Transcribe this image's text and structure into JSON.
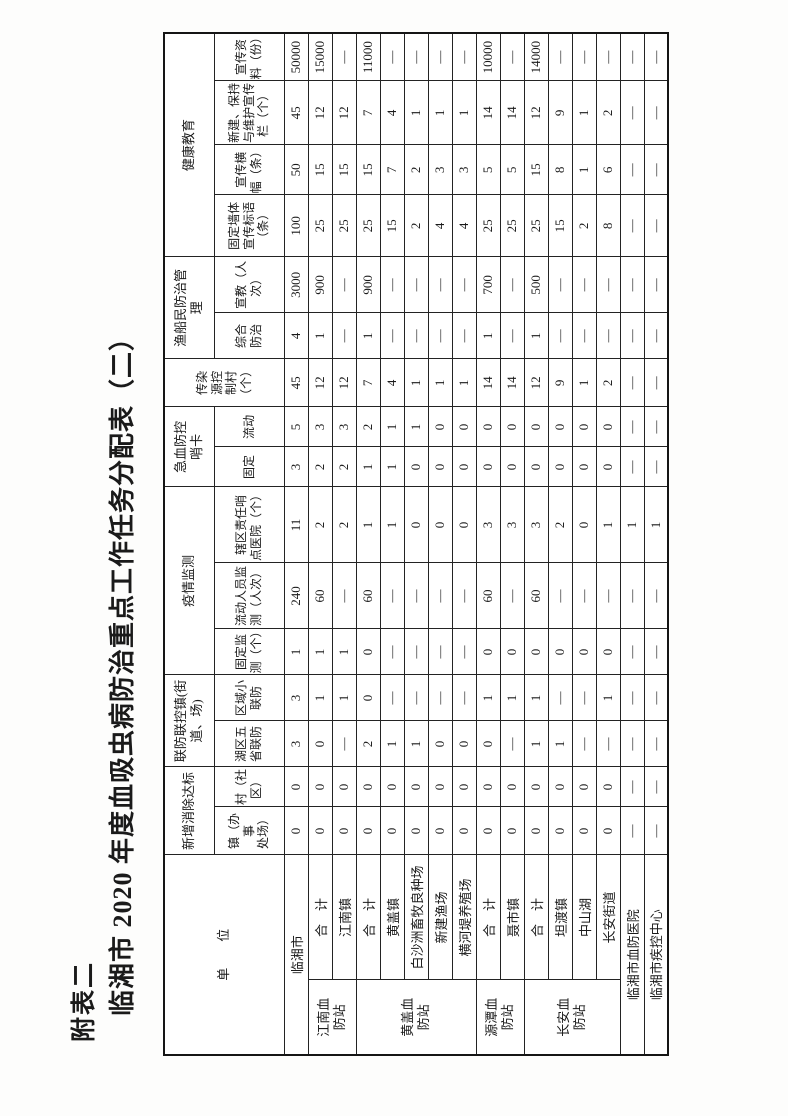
{
  "page": {
    "attachment_label": "附表二",
    "title": "临湘市 2020 年度血吸虫病防治重点工作任务分配表（二）"
  },
  "table": {
    "header": {
      "unit": "单　　位",
      "xinzeng": {
        "label": "新增消除达标",
        "c1": "镇（办事\n处场）",
        "c2": "村（社\n区）"
      },
      "lianfang": {
        "label": "联防联控镇(街\n道、场)",
        "c1": "湖区五\n省联防",
        "c2": "区域小\n联防"
      },
      "yiqing": {
        "label": "疫情监测",
        "c1": "固定监\n测（个）",
        "c2": "流动人员监\n测（人次）",
        "c3": "辖区责任哨\n点医院（个）"
      },
      "shaoka": {
        "label": "急血防控\n哨卡",
        "c1": "固定",
        "c2": "流动"
      },
      "chuanranyuan": "传染\n源控\n制村\n（个）",
      "yuchuan": {
        "label": "渔船民防治管\n理",
        "c1": "综合\n防治",
        "c2": "宣教（人\n次）"
      },
      "jiankang": {
        "label": "健康教育",
        "c1": "固定墙体\n宣传标语\n（条）",
        "c2": "宣传横\n幅（条）",
        "c3": "新建、保持\n与维护宣传\n栏（个）",
        "c4": "宣传资\n料（份）"
      }
    },
    "rows": [
      {
        "name": "临湘市",
        "name_span": 2,
        "values": [
          "0",
          "0",
          "3",
          "3",
          "1",
          "240",
          "11",
          "3",
          "5",
          "45",
          "4",
          "3000",
          "100",
          "50",
          "45",
          "50000"
        ]
      },
      {
        "group": {
          "label": "江南血\n防站",
          "rowspan": 2
        },
        "name": "合　计",
        "values": [
          "0",
          "0",
          "0",
          "1",
          "1",
          "60",
          "2",
          "2",
          "3",
          "12",
          "1",
          "900",
          "25",
          "15",
          "12",
          "15000"
        ]
      },
      {
        "name": "江南镇",
        "values": [
          "0",
          "0",
          "—",
          "1",
          "1",
          "—",
          "2",
          "2",
          "3",
          "12",
          "—",
          "—",
          "25",
          "15",
          "12",
          "—"
        ]
      },
      {
        "group": {
          "label": "黄盖血\n防站",
          "rowspan": 5
        },
        "name": "合　计",
        "values": [
          "0",
          "0",
          "2",
          "0",
          "0",
          "60",
          "1",
          "1",
          "2",
          "7",
          "1",
          "900",
          "25",
          "15",
          "7",
          "11000"
        ]
      },
      {
        "name": "黄盖镇",
        "values": [
          "0",
          "0",
          "1",
          "—",
          "—",
          "—",
          "1",
          "1",
          "1",
          "4",
          "—",
          "—",
          "15",
          "7",
          "4",
          "—"
        ]
      },
      {
        "name": "白沙洲畜牧良种场",
        "values": [
          "0",
          "0",
          "1",
          "—",
          "—",
          "—",
          "0",
          "0",
          "1",
          "1",
          "—",
          "—",
          "2",
          "2",
          "1",
          "—"
        ]
      },
      {
        "name": "新建渔场",
        "values": [
          "0",
          "0",
          "0",
          "—",
          "—",
          "—",
          "0",
          "0",
          "0",
          "1",
          "—",
          "—",
          "4",
          "3",
          "1",
          "—"
        ]
      },
      {
        "name": "横河堤养殖场",
        "values": [
          "0",
          "0",
          "0",
          "—",
          "—",
          "—",
          "0",
          "0",
          "0",
          "1",
          "—",
          "—",
          "4",
          "3",
          "1",
          "—"
        ]
      },
      {
        "group": {
          "label": "源潭血\n防站",
          "rowspan": 2
        },
        "name": "合　计",
        "values": [
          "0",
          "0",
          "0",
          "1",
          "0",
          "60",
          "3",
          "0",
          "0",
          "14",
          "1",
          "700",
          "25",
          "5",
          "14",
          "10000"
        ]
      },
      {
        "name": "聂市镇",
        "values": [
          "0",
          "0",
          "—",
          "1",
          "0",
          "—",
          "3",
          "0",
          "0",
          "14",
          "—",
          "—",
          "25",
          "5",
          "14",
          "—"
        ]
      },
      {
        "group": {
          "label": "长安血\n防站",
          "rowspan": 4
        },
        "name": "合　计",
        "values": [
          "0",
          "0",
          "1",
          "1",
          "0",
          "60",
          "3",
          "0",
          "0",
          "12",
          "1",
          "500",
          "25",
          "15",
          "12",
          "14000"
        ]
      },
      {
        "name": "坦渡镇",
        "values": [
          "0",
          "0",
          "1",
          "—",
          "0",
          "—",
          "2",
          "0",
          "0",
          "9",
          "—",
          "—",
          "15",
          "8",
          "9",
          "—"
        ]
      },
      {
        "name": "中山湖",
        "values": [
          "0",
          "0",
          "—",
          "—",
          "0",
          "—",
          "0",
          "0",
          "0",
          "1",
          "—",
          "—",
          "2",
          "1",
          "1",
          "—"
        ]
      },
      {
        "name": "长安街道",
        "values": [
          "0",
          "0",
          "—",
          "1",
          "0",
          "—",
          "1",
          "0",
          "0",
          "2",
          "—",
          "—",
          "8",
          "6",
          "2",
          "—"
        ]
      },
      {
        "name": "临湘市血防医院",
        "name_span": 2,
        "values": [
          "—",
          "—",
          "—",
          "—",
          "—",
          "—",
          "1",
          "—",
          "—",
          "—",
          "—",
          "—",
          "—",
          "—",
          "—",
          "—"
        ]
      },
      {
        "name": "临湘市疾控中心",
        "name_span": 2,
        "values": [
          "—",
          "—",
          "—",
          "—",
          "—",
          "—",
          "1",
          "—",
          "—",
          "—",
          "—",
          "—",
          "—",
          "—",
          "—",
          "—"
        ]
      }
    ]
  }
}
